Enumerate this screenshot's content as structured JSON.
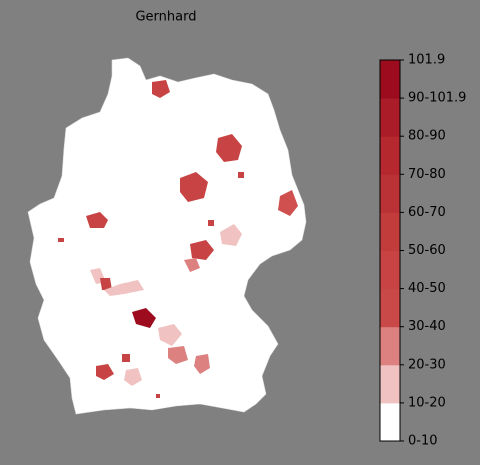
{
  "title": "Gernhard",
  "legend": {
    "labels": [
      "0-10",
      "10-20",
      "20-30",
      "30-40",
      "40-50",
      "50-60",
      "60-70",
      "70-80",
      "80-90",
      "90-101.9",
      "101.9"
    ],
    "colors": [
      "#ffffff",
      "#f0c2c2",
      "#dc8080",
      "#c94848",
      "#c84444",
      "#c23c3c",
      "#bb3236",
      "#b4282e",
      "#aa1c28",
      "#9c0c1e"
    ]
  }
}
